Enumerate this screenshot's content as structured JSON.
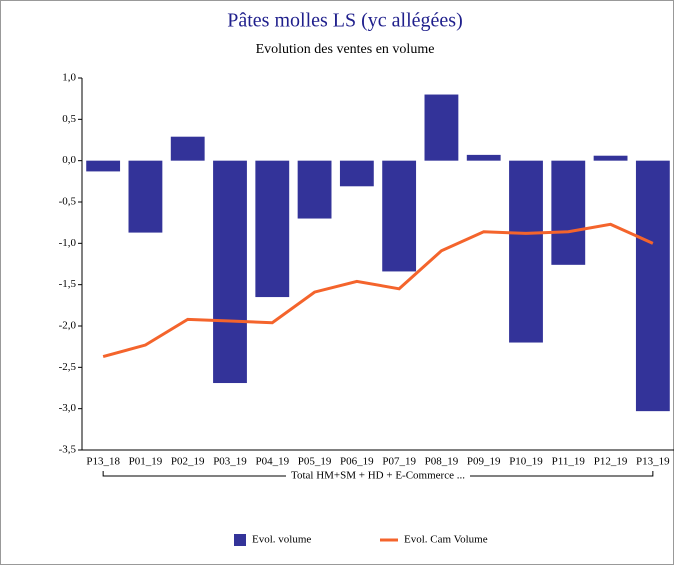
{
  "chart_data": {
    "type": "bar_line",
    "title": "Pâtes molles LS (yc allégées)",
    "subtitle": "Evolution des ventes en volume",
    "categories": [
      "P13_18",
      "P01_19",
      "P02_19",
      "P03_19",
      "P04_19",
      "P05_19",
      "P06_19",
      "P07_19",
      "P08_19",
      "P09_19",
      "P10_19",
      "P11_19",
      "P12_19",
      "P13_19"
    ],
    "group_label": "Total HM+SM + HD + E-Commerce ...",
    "series": [
      {
        "name": "Evol. volume",
        "type": "bar",
        "color": "#333399",
        "values": [
          -0.13,
          -0.87,
          0.29,
          -2.69,
          -1.65,
          -0.7,
          -0.31,
          -1.34,
          0.8,
          0.07,
          -2.2,
          -1.26,
          0.06,
          -3.03
        ]
      },
      {
        "name": "Evol. Cam Volume",
        "type": "line",
        "color": "#f4642c",
        "values": [
          -2.37,
          -2.23,
          -1.92,
          -1.94,
          -1.96,
          -1.59,
          -1.46,
          -1.55,
          -1.09,
          -0.86,
          -0.88,
          -0.86,
          -0.77,
          -1.0
        ]
      }
    ],
    "ylim": [
      -3.5,
      1.0
    ],
    "yticks": [
      {
        "value": 1.0,
        "label": "1,0"
      },
      {
        "value": 0.5,
        "label": "0,5"
      },
      {
        "value": 0.0,
        "label": "0,0"
      },
      {
        "value": -0.5,
        "label": "-0,5"
      },
      {
        "value": -1.0,
        "label": "-1,0"
      },
      {
        "value": -1.5,
        "label": "-1,5"
      },
      {
        "value": -2.0,
        "label": "-2,0"
      },
      {
        "value": -2.5,
        "label": "-2,5"
      },
      {
        "value": -3.0,
        "label": "-3,0"
      },
      {
        "value": -3.5,
        "label": "-3,5"
      }
    ],
    "legend": "bottom"
  }
}
